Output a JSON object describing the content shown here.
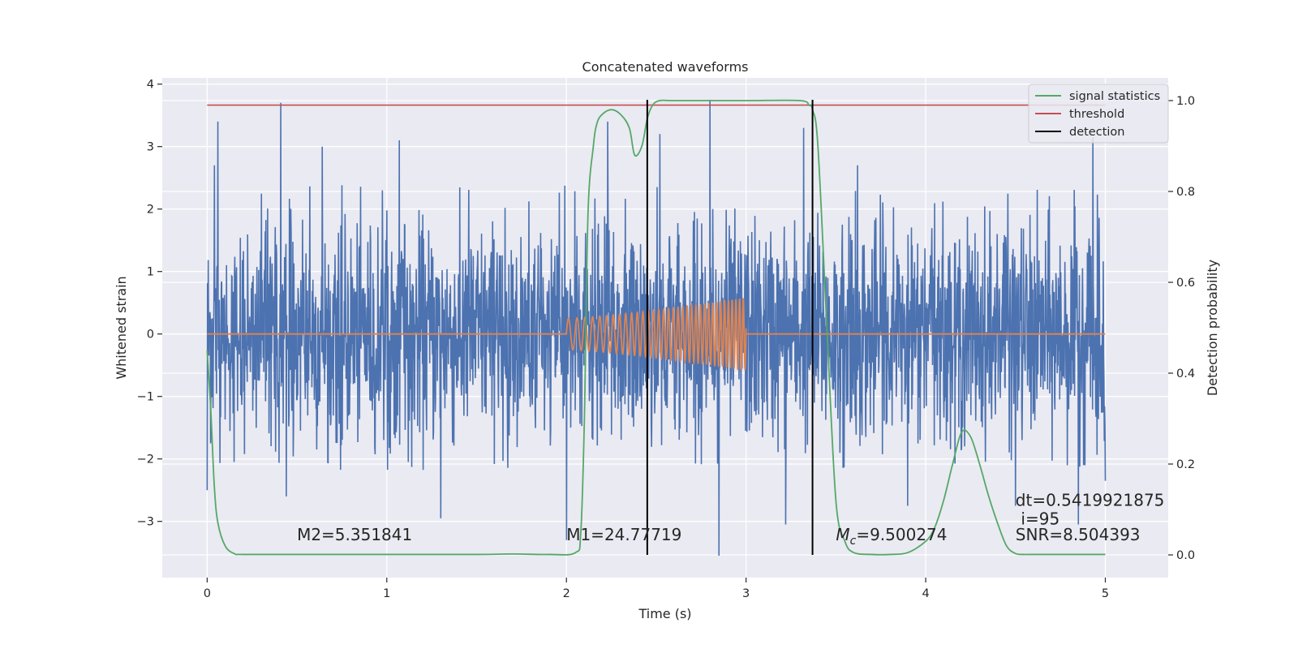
{
  "chart_data": {
    "type": "line",
    "title": "Concatenated waveforms",
    "xlabel": "Time (s)",
    "ylabel": "Whitened strain",
    "y2label": "Detection probability",
    "xlim": [
      -0.25,
      5.35
    ],
    "ylim": [
      -3.9,
      4.1
    ],
    "y2lim": [
      -0.05,
      1.05
    ],
    "grid": true,
    "legend_position": "top-right",
    "x_ticks": [
      0,
      1,
      2,
      3,
      4,
      5
    ],
    "x_tick_labels": [
      "0",
      "1",
      "2",
      "3",
      "4",
      "5"
    ],
    "y_ticks": [
      -3,
      -2,
      -1,
      0,
      1,
      2,
      3,
      4
    ],
    "y_tick_labels": [
      "−3",
      "−2",
      "−1",
      "0",
      "1",
      "2",
      "3",
      "4"
    ],
    "y2_ticks": [
      0.0,
      0.2,
      0.4,
      0.6,
      0.8,
      1.0
    ],
    "y2_tick_labels": [
      "0.0",
      "0.2",
      "0.4",
      "0.6",
      "0.8",
      "1.0"
    ],
    "series": [
      {
        "kind": "strain-noise",
        "axis": "left",
        "color": "#4c72b0",
        "x_range": [
          0,
          5
        ],
        "typical_range": [
          -2.2,
          2.4
        ],
        "peak_points": [
          [
            0.04,
            2.7
          ],
          [
            0.06,
            3.4
          ],
          [
            0.41,
            3.7
          ],
          [
            0.44,
            2.9
          ],
          [
            0.64,
            3.0
          ],
          [
            1.07,
            3.1
          ],
          [
            2.23,
            3.4
          ],
          [
            2.52,
            3.2
          ],
          [
            2.8,
            3.75
          ],
          [
            3.32,
            3.3
          ],
          [
            3.62,
            2.7
          ],
          [
            4.93,
            3.15
          ],
          [
            0.0,
            -2.5
          ],
          [
            0.44,
            -2.6
          ],
          [
            1.3,
            -2.95
          ],
          [
            2.0,
            -3.3
          ],
          [
            2.85,
            -3.55
          ],
          [
            3.22,
            -3.05
          ],
          [
            3.9,
            -2.75
          ],
          [
            4.5,
            -2.75
          ],
          [
            4.85,
            -3.05
          ],
          [
            5.0,
            -2.35
          ]
        ]
      },
      {
        "kind": "chirp-template",
        "axis": "left",
        "color": "#dd8452",
        "x_range": [
          0,
          5
        ],
        "chirp_start": 2.0,
        "chirp_end": 3.0,
        "amplitude_start": 0.25,
        "amplitude_end": 0.58
      },
      {
        "name": "signal statistics",
        "axis": "right",
        "color": "#55a868",
        "x": [
          0,
          0.02,
          0.04,
          0.06,
          0.1,
          0.15,
          0.2,
          0.5,
          1.0,
          1.5,
          1.7,
          1.9,
          2.05,
          2.08,
          2.1,
          2.12,
          2.15,
          2.17,
          2.2,
          2.25,
          2.3,
          2.35,
          2.38,
          2.42,
          2.45,
          2.48,
          2.52,
          2.6,
          3.0,
          3.3,
          3.35,
          3.37,
          3.4,
          3.45,
          3.5,
          3.55,
          3.6,
          3.7,
          3.8,
          3.9,
          4.0,
          4.05,
          4.1,
          4.15,
          4.2,
          4.25,
          4.3,
          4.35,
          4.4,
          4.45,
          4.5,
          4.55,
          4.6,
          5.0
        ],
        "y": [
          0.45,
          0.32,
          0.15,
          0.07,
          0.02,
          0.003,
          0.001,
          0.001,
          0.001,
          0.001,
          0.002,
          0.001,
          0.005,
          0.05,
          0.3,
          0.75,
          0.9,
          0.95,
          0.97,
          0.98,
          0.97,
          0.94,
          0.88,
          0.9,
          0.96,
          0.99,
          1.0,
          1.0,
          1.0,
          1.0,
          0.99,
          0.98,
          0.9,
          0.5,
          0.12,
          0.03,
          0.005,
          0.001,
          0.001,
          0.005,
          0.03,
          0.06,
          0.12,
          0.2,
          0.27,
          0.26,
          0.2,
          0.13,
          0.07,
          0.02,
          0.003,
          0.001,
          0.001,
          0.001
        ]
      },
      {
        "name": "threshold",
        "axis": "right",
        "color": "#c44e52",
        "x": [
          0,
          5
        ],
        "y": [
          0.99,
          0.99
        ]
      }
    ],
    "detections": {
      "name": "detection",
      "color": "#000000",
      "x": [
        2.45,
        3.37
      ],
      "y2_range": [
        0.0,
        1.0
      ]
    },
    "annotations": [
      {
        "text": "M2=5.351841",
        "x": 0.5,
        "y": -3.3
      },
      {
        "text": "M1=24.77719",
        "x": 2.0,
        "y": -3.3
      },
      {
        "text_prefix": "M",
        "text_sub": "c",
        "text_rest": "=9.500274",
        "x": 3.5,
        "y": -3.3
      },
      {
        "text": "dt=0.5419921875",
        "x": 4.5,
        "y": -2.75
      },
      {
        "text": "i=95",
        "x": 4.53,
        "y": -3.05
      },
      {
        "text": "SNR=8.504393",
        "x": 4.5,
        "y": -3.3
      }
    ]
  }
}
